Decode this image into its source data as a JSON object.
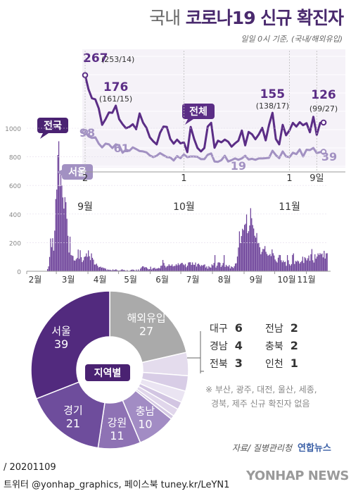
{
  "title": {
    "light": "국내",
    "bold": "코로나19 신규 확진자"
  },
  "subtitle": "일일 0시 기준, (국내/해외유입)",
  "chart_data": [
    {
      "type": "line",
      "name": "inset-recent",
      "x_ticks": [
        {
          "day": "2",
          "month": "9월"
        },
        {
          "day": "1",
          "month": "10월"
        },
        {
          "day": "1",
          "month": "11월"
        },
        {
          "day": "9일",
          "month": ""
        }
      ],
      "series": [
        {
          "name": "전체",
          "color": "#5b2d86",
          "values": [
            267,
            225,
            198,
            195,
            168,
            119,
            136,
            156,
            155,
            176,
            136,
            121,
            109,
            113,
            121,
            106,
            153,
            126,
            110,
            82,
            70,
            61,
            95,
            114,
            113,
            77,
            63,
            75,
            64,
            67,
            38,
            113,
            77,
            50,
            40,
            50,
            114,
            125,
            51,
            72,
            67,
            75,
            69,
            54,
            64,
            72,
            102,
            58,
            98,
            91,
            76,
            91,
            110,
            73,
            119,
            155,
            77,
            61,
            119,
            88,
            103,
            125,
            114,
            127,
            118,
            124,
            97,
            143,
            89,
            125,
            126
          ],
          "labels": [
            {
              "idx": 0,
              "value": "267",
              "detail": "(253/14)"
            },
            {
              "idx": 9,
              "value": "176",
              "detail": "(161/15)"
            },
            {
              "idx": 55,
              "value": "155",
              "detail": "(138/17)"
            },
            {
              "idx": 70,
              "value": "126",
              "detail": "(99/27)"
            }
          ]
        },
        {
          "name": "서울",
          "color": "#a291c2",
          "values": [
            98,
            85,
            80,
            82,
            63,
            52,
            63,
            61,
            50,
            61,
            58,
            36,
            45,
            42,
            52,
            47,
            41,
            40,
            37,
            28,
            23,
            27,
            35,
            29,
            23,
            22,
            13,
            26,
            20,
            31,
            23,
            25,
            25,
            24,
            17,
            17,
            30,
            34,
            10,
            9,
            14,
            27,
            10,
            14,
            19,
            15,
            19,
            27,
            16,
            18,
            15,
            19,
            19,
            20,
            21,
            42,
            29,
            20,
            40,
            25,
            23,
            36,
            32,
            46,
            25,
            45,
            44,
            50,
            35,
            38,
            39
          ],
          "labels": [
            {
              "idx": 0,
              "value": "98"
            },
            {
              "idx": 9,
              "value": "61"
            },
            {
              "idx": 45,
              "value": "19"
            },
            {
              "idx": 70,
              "value": "39"
            }
          ]
        }
      ]
    },
    {
      "type": "bar",
      "name": "daily-overall",
      "y_ticks": [
        "0",
        "200",
        "400",
        "600",
        "800",
        "1000"
      ],
      "ylim": [
        0,
        1000
      ],
      "x_ticks": [
        "2월",
        "3월",
        "4월",
        "5월",
        "6월",
        "7월",
        "8월",
        "9월",
        "10월",
        "11월"
      ],
      "series_name": "전국",
      "color": "#6b3f98",
      "values": [
        1,
        0,
        0,
        0,
        0,
        0,
        0,
        0,
        0,
        0,
        1,
        1,
        0,
        0,
        0,
        0,
        2,
        0,
        1,
        2,
        15,
        34,
        100,
        229,
        169,
        231,
        144,
        284,
        505,
        571,
        813,
        909,
        595,
        686,
        600,
        516,
        438,
        518,
        483,
        367,
        248,
        131,
        242,
        114,
        110,
        107,
        76,
        74,
        84,
        93,
        152,
        87,
        147,
        98,
        64,
        76,
        100,
        104,
        125,
        101,
        146,
        105,
        78,
        125,
        94,
        81,
        47,
        47,
        53,
        39,
        27,
        30,
        32,
        25,
        27,
        22,
        22,
        18,
        8,
        13,
        9,
        11,
        8,
        6,
        13,
        8,
        10,
        14,
        9,
        4,
        6,
        4,
        10,
        14,
        9,
        9,
        6,
        2,
        8,
        3,
        2,
        6,
        10,
        12,
        11,
        8,
        3,
        12,
        4,
        13,
        4,
        18,
        27,
        35,
        34,
        26,
        29,
        27,
        19,
        13,
        15,
        32,
        12,
        20,
        23,
        25,
        16,
        19,
        20,
        24,
        20,
        38,
        40,
        79,
        58,
        39,
        27,
        35,
        38,
        49,
        39,
        39,
        48,
        34,
        37,
        38,
        49,
        41,
        56,
        43,
        51,
        57,
        59,
        48,
        42,
        51,
        28,
        39,
        61,
        63,
        63,
        44,
        62,
        46,
        45,
        61,
        33,
        50,
        54,
        45,
        35,
        44,
        39,
        45,
        48,
        26,
        34,
        18,
        36,
        28,
        25,
        48,
        41,
        58,
        113,
        26,
        39,
        61,
        63,
        59,
        30,
        41,
        58,
        113,
        31,
        45,
        36,
        33,
        43,
        20,
        34,
        30,
        23,
        36,
        54,
        56,
        103,
        166,
        279,
        197,
        246,
        297,
        288,
        324,
        332,
        397,
        266,
        280,
        320,
        441,
        371,
        323,
        299,
        248,
        235,
        267,
        195,
        198,
        168,
        119,
        136,
        156,
        155,
        176,
        136,
        121,
        109,
        113,
        121,
        106,
        153,
        126,
        110,
        82,
        70,
        61,
        95,
        114,
        113,
        77,
        63,
        75,
        64,
        67,
        38,
        113,
        77,
        50,
        40,
        50,
        114,
        125,
        51,
        72,
        67,
        75,
        69,
        54,
        64,
        72,
        102,
        58,
        98,
        91,
        76,
        91,
        110,
        73,
        119,
        155,
        77,
        61,
        119,
        88,
        103,
        125,
        114,
        127,
        118,
        124,
        97,
        143,
        89,
        125,
        126
      ]
    },
    {
      "type": "pie",
      "name": "region-donut",
      "center_label": "지역별",
      "slices": [
        {
          "label": "해외유입",
          "value": 27,
          "color": "#aaaaaa"
        },
        {
          "label": "대구",
          "value": 6,
          "color": "#e4dced"
        },
        {
          "label": "경남",
          "value": 4,
          "color": "#d8cde6"
        },
        {
          "label": "전북",
          "value": 3,
          "color": "#eae4f2"
        },
        {
          "label": "전남",
          "value": 2,
          "color": "#d2c5e2"
        },
        {
          "label": "충북",
          "value": 2,
          "color": "#e0d6eb"
        },
        {
          "label": "인천",
          "value": 1,
          "color": "#d4c8e3"
        },
        {
          "label": "충남",
          "value": 10,
          "color": "#a28cc4"
        },
        {
          "label": "강원",
          "value": 11,
          "color": "#8e72b4"
        },
        {
          "label": "경기",
          "value": 21,
          "color": "#6e4d9c"
        },
        {
          "label": "서울",
          "value": 39,
          "color": "#522a7e"
        }
      ]
    }
  ],
  "legend": {
    "overall": "전국",
    "total": "전체",
    "seoul": "서울"
  },
  "regions": [
    {
      "name": "대구",
      "value": "6"
    },
    {
      "name": "전남",
      "value": "2"
    },
    {
      "name": "경남",
      "value": "4"
    },
    {
      "name": "충북",
      "value": "2"
    },
    {
      "name": "전북",
      "value": "3"
    },
    {
      "name": "인천",
      "value": "1"
    }
  ],
  "note": [
    "※ 부산, 광주, 대전, 울산, 세종,",
    "경북, 제주 신규 확진자 없음"
  ],
  "source": "자료/ 질병관리청",
  "brand": "연합뉴스",
  "date_code": "/ 20201109",
  "social": "트위터 @yonhap_graphics, 페이스북 tuney.kr/LeYN1",
  "logo_text": "YONHAP NEWS"
}
